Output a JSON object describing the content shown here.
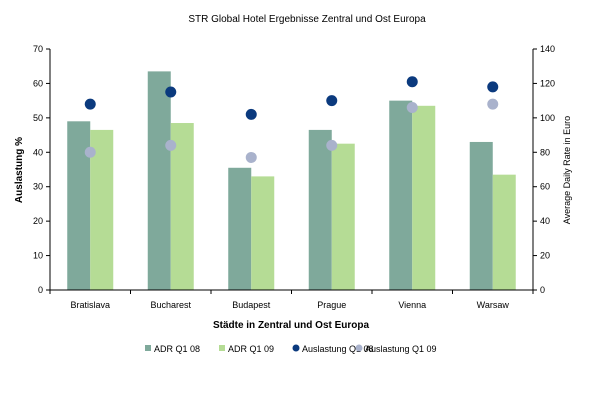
{
  "chart_data": {
    "type": "bar",
    "title": "STR Global Hotel Ergebnisse Zentral und Ost Europa",
    "xlabel": "Städte in Zentral und Ost Europa",
    "ylabel": "Auslastung %",
    "y2label": "Average Daily Rate in Euro",
    "ylim": [
      0,
      70
    ],
    "y2lim": [
      0,
      140
    ],
    "yticks": [
      "0",
      "10",
      "20",
      "30",
      "40",
      "50",
      "60",
      "70"
    ],
    "y2ticks": [
      "0",
      "20",
      "40",
      "60",
      "80",
      "100",
      "120",
      "140"
    ],
    "categories": [
      "Bratislava",
      "Bucharest",
      "Budapest",
      "Prague",
      "Vienna",
      "Warsaw"
    ],
    "series": [
      {
        "name": "ADR Q1 08",
        "kind": "bar",
        "axis": "right",
        "color": "#7fa99b",
        "values": [
          98,
          127,
          71,
          93,
          110,
          86
        ]
      },
      {
        "name": "ADR Q1 09",
        "kind": "bar",
        "axis": "right",
        "color": "#b5dc95",
        "values": [
          93,
          97,
          66,
          85,
          107,
          67
        ]
      },
      {
        "name": "Auslastung Q1 08",
        "kind": "dot",
        "axis": "left",
        "color": "#0b3a7e",
        "values": [
          54,
          57.5,
          51,
          55,
          60.5,
          59
        ]
      },
      {
        "name": "Auslastung Q1 09",
        "kind": "dot",
        "axis": "left",
        "color": "#a9b2cc",
        "values": [
          40,
          42,
          38.5,
          42,
          53,
          54
        ]
      }
    ],
    "grid": false,
    "legend": "bottom"
  }
}
